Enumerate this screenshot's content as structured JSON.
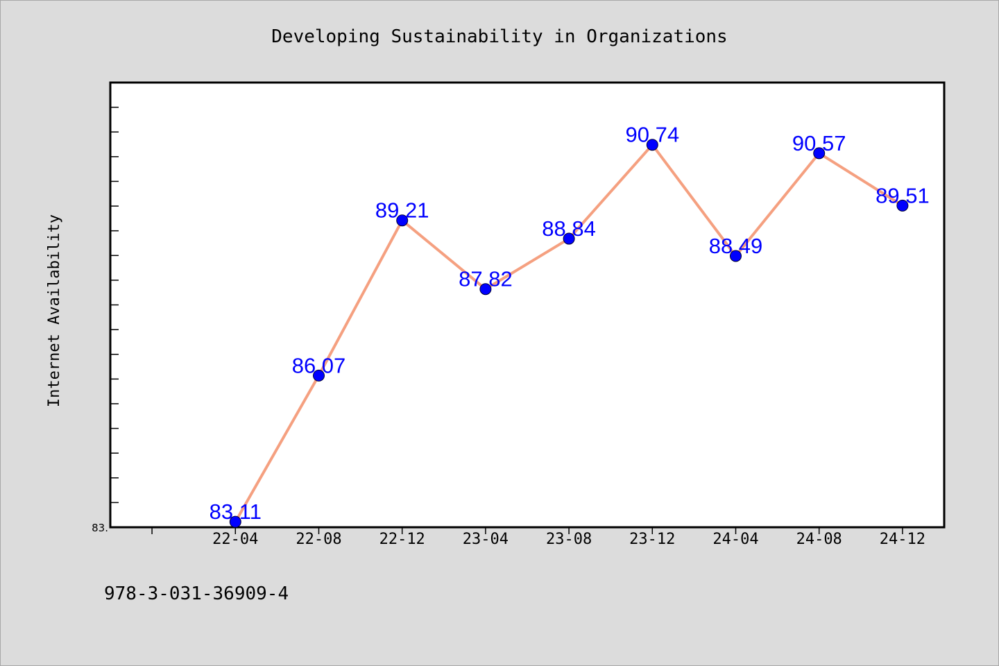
{
  "chart_data": {
    "type": "line",
    "title": "Developing Sustainability in Organizations",
    "xlabel": "",
    "ylabel": "Internet Availability",
    "categories": [
      "22-04",
      "22-08",
      "22-12",
      "23-04",
      "23-08",
      "23-12",
      "24-04",
      "24-08",
      "24-12"
    ],
    "series": [
      {
        "values": [
          83.11,
          86.07,
          89.21,
          87.82,
          88.84,
          90.74,
          88.49,
          90.57,
          89.51
        ],
        "data_labels": true
      }
    ],
    "ylim": [
      83,
      92
    ],
    "yticks": [
      {
        "value": 83,
        "label": "83."
      }
    ],
    "y_minor_tick_step": 0.5,
    "grid": false,
    "legend": "none",
    "colors": {
      "line": "#f5a080",
      "marker": "#0000ff",
      "marker_edge": "#000033",
      "data_label": "#0000ff",
      "plot_background": "#ffffff",
      "page_background": "#dcdcdc",
      "axes": "#000000"
    }
  },
  "footer": {
    "text": "978-3-031-36909-4"
  }
}
